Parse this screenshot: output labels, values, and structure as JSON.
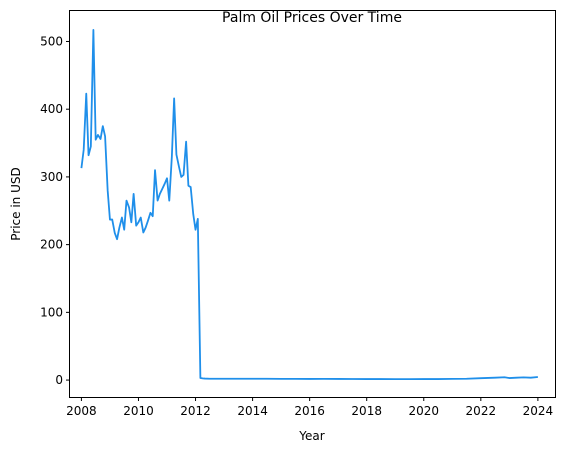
{
  "chart_data": {
    "type": "line",
    "title": "Palm Oil Prices Over Time",
    "xlabel": "Year",
    "ylabel": "Price in USD",
    "xlim": [
      2007.6,
      2024.6
    ],
    "ylim": [
      -25,
      545
    ],
    "xticks": [
      2008,
      2010,
      2012,
      2014,
      2016,
      2018,
      2020,
      2022,
      2024
    ],
    "yticks": [
      0,
      100,
      200,
      300,
      400,
      500
    ],
    "grid": false,
    "line_color": "#1f8fea",
    "series": [
      {
        "x": [
          2008.0,
          2008.08,
          2008.17,
          2008.25,
          2008.33,
          2008.42,
          2008.5,
          2008.58,
          2008.67,
          2008.75,
          2008.83,
          2008.92,
          2009.0,
          2009.08,
          2009.17,
          2009.25,
          2009.33,
          2009.42,
          2009.5,
          2009.58,
          2009.67,
          2009.75,
          2009.83,
          2009.92,
          2010.0,
          2010.08,
          2010.17,
          2010.25,
          2010.33,
          2010.42,
          2010.5,
          2010.58,
          2010.67,
          2010.75,
          2010.83,
          2010.92,
          2011.0,
          2011.08,
          2011.17,
          2011.25,
          2011.33,
          2011.42,
          2011.5,
          2011.58,
          2011.67,
          2011.75,
          2011.83,
          2011.92,
          2012.0,
          2012.08,
          2012.17,
          2012.25,
          2012.33,
          2012.5,
          2013.0,
          2013.5,
          2014.0,
          2014.5,
          2015.0,
          2015.5,
          2016.0,
          2016.5,
          2017.0,
          2017.5,
          2018.0,
          2018.5,
          2019.0,
          2019.5,
          2020.0,
          2020.5,
          2021.0,
          2021.5,
          2022.0,
          2022.5,
          2022.83,
          2023.0,
          2023.25,
          2023.5,
          2023.75,
          2024.0
        ],
        "y": [
          313,
          340,
          423,
          332,
          345,
          517,
          355,
          362,
          356,
          375,
          360,
          280,
          237,
          237,
          217,
          208,
          225,
          240,
          222,
          265,
          255,
          233,
          275,
          228,
          233,
          240,
          218,
          225,
          235,
          247,
          242,
          310,
          265,
          275,
          282,
          290,
          298,
          265,
          330,
          416,
          333,
          315,
          300,
          303,
          352,
          287,
          285,
          245,
          222,
          238,
          3,
          2.5,
          2.2,
          2.0,
          2.0,
          2.0,
          2.0,
          1.9,
          1.8,
          1.8,
          1.7,
          1.8,
          1.7,
          1.6,
          1.5,
          1.5,
          1.4,
          1.4,
          1.5,
          1.5,
          1.8,
          2.0,
          2.8,
          3.5,
          4.2,
          3.0,
          3.5,
          4.0,
          3.5,
          4.5
        ]
      }
    ]
  }
}
